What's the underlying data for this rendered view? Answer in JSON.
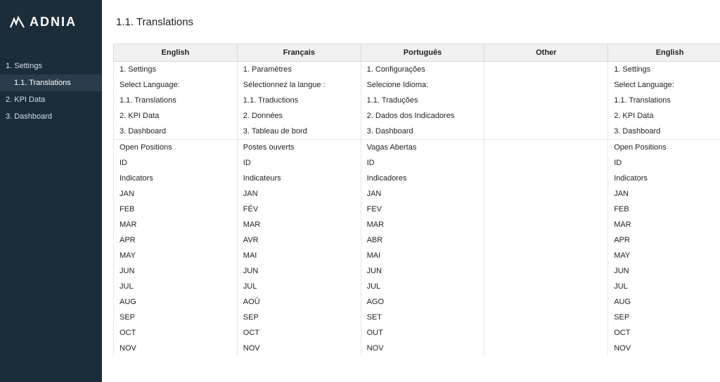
{
  "brand": {
    "name": "ADNIA"
  },
  "page": {
    "title": "1.1. Translations"
  },
  "sidebar": {
    "items": [
      {
        "label": "1. Settings",
        "sub": false,
        "selected": false
      },
      {
        "label": "1.1. Translations",
        "sub": true,
        "selected": true
      },
      {
        "label": "2. KPI Data",
        "sub": false,
        "selected": false
      },
      {
        "label": "3. Dashboard",
        "sub": false,
        "selected": false
      }
    ]
  },
  "table": {
    "columns": [
      "English",
      "Français",
      "Português",
      "Other",
      "English"
    ],
    "rows": [
      {
        "sep": false,
        "cells": [
          "1. Settings",
          "1. Paramètres",
          "1. Configurações",
          "",
          "1. Settings"
        ]
      },
      {
        "sep": false,
        "cells": [
          "Select Language:",
          "Sélectionnez la langue :",
          "Selecione Idioma:",
          "",
          "Select Language:"
        ]
      },
      {
        "sep": false,
        "cells": [
          "1.1. Translations",
          "1.1. Traductions",
          "1.1. Traduções",
          "",
          "1.1. Translations"
        ]
      },
      {
        "sep": false,
        "cells": [
          "2. KPI Data",
          "2. Données",
          "2. Dados dos Indicadores",
          "",
          "2. KPI Data"
        ]
      },
      {
        "sep": false,
        "cells": [
          "3. Dashboard",
          "3. Tableau de bord",
          "3. Dashboard",
          "",
          "3. Dashboard"
        ]
      },
      {
        "sep": true,
        "cells": [
          "Open Positions",
          "Postes ouverts",
          "Vagas Abertas",
          "",
          "Open Positions"
        ]
      },
      {
        "sep": false,
        "cells": [
          "ID",
          "ID",
          "ID",
          "",
          "ID"
        ]
      },
      {
        "sep": false,
        "cells": [
          "Indicators",
          "Indicateurs",
          "Indicadores",
          "",
          "Indicators"
        ]
      },
      {
        "sep": false,
        "cells": [
          "JAN",
          "JAN",
          "JAN",
          "",
          "JAN"
        ]
      },
      {
        "sep": false,
        "cells": [
          "FEB",
          "FÉV",
          "FEV",
          "",
          "FEB"
        ]
      },
      {
        "sep": false,
        "cells": [
          "MAR",
          "MAR",
          "MAR",
          "",
          "MAR"
        ]
      },
      {
        "sep": false,
        "cells": [
          "APR",
          "AVR",
          "ABR",
          "",
          "APR"
        ]
      },
      {
        "sep": false,
        "cells": [
          "MAY",
          "MAI",
          "MAI",
          "",
          "MAY"
        ]
      },
      {
        "sep": false,
        "cells": [
          "JUN",
          "JUN",
          "JUN",
          "",
          "JUN"
        ]
      },
      {
        "sep": false,
        "cells": [
          "JUL",
          "JUL",
          "JUL",
          "",
          "JUL"
        ]
      },
      {
        "sep": false,
        "cells": [
          "AUG",
          "AOÛ",
          "AGO",
          "",
          "AUG"
        ]
      },
      {
        "sep": false,
        "cells": [
          "SEP",
          "SEP",
          "SET",
          "",
          "SEP"
        ]
      },
      {
        "sep": false,
        "cells": [
          "OCT",
          "OCT",
          "OUT",
          "",
          "OCT"
        ]
      },
      {
        "sep": false,
        "cells": [
          "NOV",
          "NOV",
          "NOV",
          "",
          "NOV"
        ]
      }
    ]
  },
  "colors": {
    "sidebar_bg": "#1c2d3a",
    "sidebar_selected_bg": "#2a3c4a",
    "header_bg": "#f0f0f0",
    "border": "#d9d9d9",
    "cell_border": "#e6e6e6",
    "text": "#222222"
  }
}
